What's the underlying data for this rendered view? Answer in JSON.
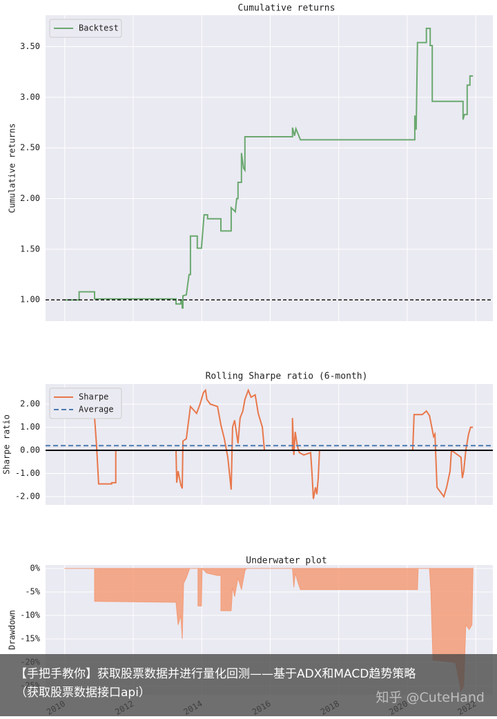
{
  "chart_data": [
    {
      "type": "line",
      "title": "Cumulative returns",
      "ylabel": "Cumulative returns",
      "xlim": [
        2009.44,
        2022.5
      ],
      "xticks": [
        2010,
        2012,
        2014,
        2016,
        2018,
        2020,
        2022
      ],
      "x_tick_labels": false,
      "ylim": [
        0.79,
        3.81
      ],
      "yticks": [
        {
          "value": 1,
          "label": "1.00"
        },
        {
          "value": 1.5,
          "label": "1.50"
        },
        {
          "value": 2,
          "label": "2.00"
        },
        {
          "value": 2.5,
          "label": "2.50"
        },
        {
          "value": 3,
          "label": "3.00"
        },
        {
          "value": 3.5,
          "label": "3.50"
        }
      ],
      "grid": true,
      "legend": "upper left",
      "hline": 1,
      "hline_style": "dashed",
      "series": [
        {
          "name": "Backtest",
          "color": "#6aa86f",
          "x": [
            2010.0,
            2010.42,
            2010.42,
            2010.87,
            2010.87,
            2013.25,
            2013.25,
            2013.39,
            2013.39,
            2013.43,
            2013.43,
            2013.45,
            2013.45,
            2013.55,
            2013.63,
            2013.67,
            2013.67,
            2013.87,
            2013.87,
            2013.99,
            2014.07,
            2014.17,
            2014.17,
            2014.56,
            2014.56,
            2014.86,
            2014.86,
            2014.98,
            2015.02,
            2015.06,
            2015.06,
            2015.16,
            2015.16,
            2015.22,
            2015.26,
            2015.26,
            2016.65,
            2016.65,
            2016.71,
            2016.75,
            2016.81,
            2016.88,
            2020.22,
            2020.22,
            2020.26,
            2020.3,
            2020.56,
            2020.56,
            2020.67,
            2020.67,
            2020.73,
            2020.73,
            2021.63,
            2021.63,
            2021.67,
            2021.75,
            2021.75,
            2021.83,
            2021.83,
            2021.92
          ],
          "values": [
            1.0,
            1.0,
            1.08,
            1.08,
            1.01,
            1.01,
            0.96,
            0.96,
            1.0,
            1.0,
            0.92,
            0.92,
            1.04,
            1.05,
            1.25,
            1.25,
            1.63,
            1.63,
            1.51,
            1.51,
            1.84,
            1.84,
            1.8,
            1.8,
            1.68,
            1.68,
            1.91,
            1.87,
            2.0,
            2.0,
            2.16,
            2.16,
            2.45,
            2.3,
            2.28,
            2.61,
            2.61,
            2.7,
            2.62,
            2.69,
            2.64,
            2.58,
            2.58,
            2.82,
            2.68,
            3.54,
            3.54,
            3.68,
            3.68,
            3.51,
            3.51,
            2.96,
            2.96,
            2.78,
            2.83,
            2.83,
            3.12,
            3.12,
            3.21,
            3.21
          ]
        }
      ]
    },
    {
      "type": "line",
      "title": "Rolling Sharpe ratio (6-month)",
      "ylabel": "Sharpe ratio",
      "xlim": [
        2009.44,
        2022.5
      ],
      "xticks": [
        2010,
        2012,
        2014,
        2016,
        2018,
        2020,
        2022
      ],
      "x_tick_labels": false,
      "ylim": [
        -2.36,
        2.87
      ],
      "yticks": [
        {
          "value": -2,
          "label": "-2.00"
        },
        {
          "value": -1,
          "label": "-1.00"
        },
        {
          "value": 0,
          "label": "0.00"
        },
        {
          "value": 1,
          "label": "1.00"
        },
        {
          "value": 2,
          "label": "2.00"
        }
      ],
      "grid": true,
      "legend": "upper left",
      "hline": 0,
      "hline_style": "solid",
      "series": [
        {
          "name": "Sharpe",
          "color": "#e8774a",
          "x": [
            2010.52,
            2010.87,
            2010.93,
            2010.99,
            2011.37,
            2011.37,
            2011.49,
            2011.49,
            2013.25,
            2013.27,
            2013.31,
            2013.39,
            2013.43,
            2013.45,
            2013.55,
            2013.67,
            2013.85,
            2013.95,
            2014.05,
            2014.11,
            2014.15,
            2014.25,
            2014.46,
            2014.56,
            2014.66,
            2014.76,
            2014.86,
            2014.9,
            2014.96,
            2015.06,
            2015.12,
            2015.2,
            2015.26,
            2015.36,
            2015.44,
            2015.56,
            2015.65,
            2015.77,
            2015.83,
            2016.65,
            2016.65,
            2016.69,
            2016.73,
            2016.79,
            2016.85,
            2016.98,
            2017.18,
            2017.22,
            2017.26,
            2017.32,
            2017.36,
            2017.4,
            2017.44,
            2020.16,
            2020.2,
            2020.44,
            2020.56,
            2020.65,
            2020.77,
            2020.81,
            2020.87,
            2021.07,
            2021.15,
            2021.25,
            2021.29,
            2021.57,
            2021.61,
            2021.65,
            2021.71,
            2021.79,
            2021.85,
            2021.92
          ],
          "values": [
            1.42,
            1.42,
            0.2,
            -1.45,
            -1.45,
            -1.4,
            -1.4,
            0.0,
            0.0,
            -1.4,
            -0.9,
            -1.5,
            -1.65,
            0.4,
            0.5,
            1.9,
            1.6,
            2.0,
            2.5,
            2.6,
            2.2,
            2.0,
            1.9,
            1.1,
            0.5,
            -0.3,
            -1.7,
            1.0,
            1.3,
            0.3,
            1.4,
            1.7,
            2.2,
            2.6,
            2.3,
            2.4,
            1.6,
            1.0,
            0.0,
            0.0,
            1.4,
            -0.2,
            0.8,
            0.2,
            -0.1,
            -0.2,
            -0.1,
            -1.0,
            -2.1,
            -1.6,
            -1.9,
            -1.2,
            0.0,
            0.0,
            1.55,
            1.55,
            1.7,
            1.5,
            0.6,
            0.7,
            -1.6,
            -2.0,
            -1.6,
            -0.9,
            0.0,
            -0.3,
            -1.2,
            -0.9,
            0.0,
            0.7,
            1.0,
            1.0
          ]
        },
        {
          "name": "Average",
          "color": "#4a78b0",
          "dashed": true,
          "x": [
            2009.44,
            2022.5
          ],
          "values": [
            0.2,
            0.2
          ]
        }
      ]
    },
    {
      "type": "area",
      "title": "Underwater plot",
      "ylabel": "Drawdown",
      "xlim": [
        2009.44,
        2022.5
      ],
      "xticks": [
        2010,
        2012,
        2014,
        2016,
        2018,
        2020,
        2022
      ],
      "ylim": [
        -26.9,
        0.74
      ],
      "yticks": [
        {
          "value": -25,
          "label": "-25%"
        },
        {
          "value": -20,
          "label": "-20%"
        },
        {
          "value": -15,
          "label": "-15%"
        },
        {
          "value": -10,
          "label": "-10%"
        },
        {
          "value": -5,
          "label": "-5%"
        },
        {
          "value": 0,
          "label": "0%"
        }
      ],
      "grid": true,
      "series": [
        {
          "color": "#f39c78",
          "x": [
            2010.0,
            2010.87,
            2010.87,
            2013.25,
            2013.31,
            2013.39,
            2013.43,
            2013.47,
            2013.55,
            2013.65,
            2013.89,
            2013.89,
            2013.99,
            2014.01,
            2014.15,
            2014.46,
            2014.56,
            2014.56,
            2014.86,
            2014.9,
            2014.96,
            2015.06,
            2015.16,
            2015.26,
            2015.3,
            2016.65,
            2016.69,
            2016.73,
            2016.81,
            2016.88,
            2020.3,
            2020.32,
            2020.65,
            2020.69,
            2020.75,
            2021.41,
            2021.57,
            2021.65,
            2021.71,
            2021.81,
            2021.89,
            2021.92
          ],
          "values": [
            0,
            0,
            -7,
            -7.2,
            -12,
            -10,
            -15,
            -3.2,
            -2,
            0,
            0,
            -8,
            -8,
            0,
            -1,
            -1.5,
            -1.5,
            -9,
            -9,
            -4,
            -6,
            -2,
            -4.5,
            -0.5,
            0,
            0,
            -4,
            -1,
            -3,
            -4.5,
            -4.5,
            0,
            0,
            -5,
            -19.5,
            -20,
            -26,
            -25,
            -12,
            -13,
            -12,
            0
          ]
        }
      ]
    }
  ],
  "caption": "【手把手教你】获取股票数据并进行量化回测——基于ADX和MACD趋势策略（获取股票数据接口api）",
  "watermark": "知乎 @CuteHand"
}
